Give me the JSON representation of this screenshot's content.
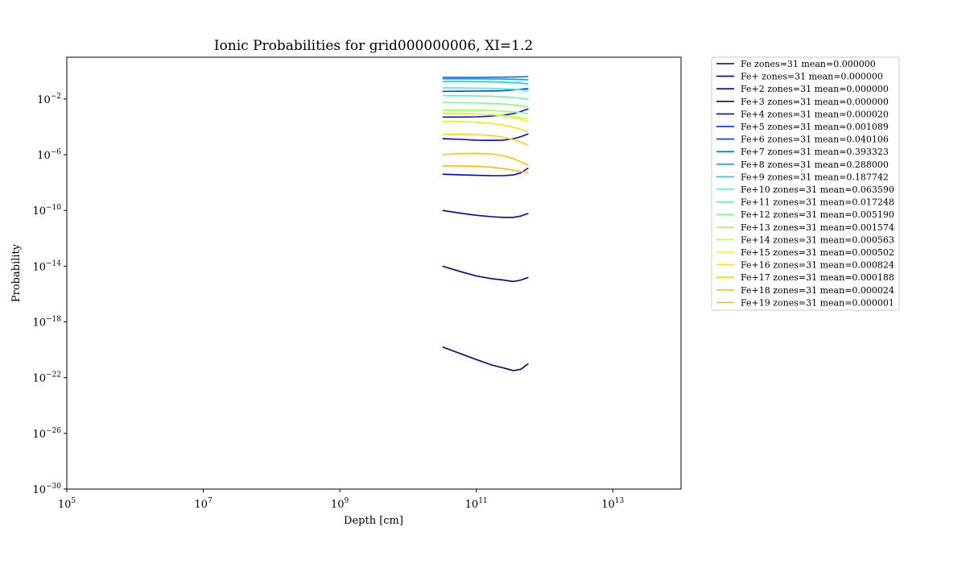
{
  "chart_data": {
    "type": "line",
    "title": "Ionic Probabilities for grid000000006, XI=1.2",
    "xlabel": "Depth [cm]",
    "ylabel": "Probability",
    "xscale": "log",
    "yscale": "log",
    "xlim": [
      100000.0,
      100000000000000.0
    ],
    "ylim": [
      1e-30,
      10.0
    ],
    "xticks": [
      {
        "value": 100000.0,
        "base": "10",
        "exp": "5"
      },
      {
        "value": 10000000.0,
        "base": "10",
        "exp": "7"
      },
      {
        "value": 1000000000.0,
        "base": "10",
        "exp": "9"
      },
      {
        "value": 100000000000.0,
        "base": "10",
        "exp": "11"
      },
      {
        "value": 10000000000000.0,
        "base": "10",
        "exp": "13"
      }
    ],
    "yticks": [
      {
        "value": 0.01,
        "base": "10",
        "exp": "−2"
      },
      {
        "value": 1e-06,
        "base": "10",
        "exp": "−6"
      },
      {
        "value": 1e-10,
        "base": "10",
        "exp": "−10"
      },
      {
        "value": 1e-14,
        "base": "10",
        "exp": "−14"
      },
      {
        "value": 1e-18,
        "base": "10",
        "exp": "−18"
      },
      {
        "value": 1e-22,
        "base": "10",
        "exp": "−22"
      },
      {
        "value": 1e-26,
        "base": "10",
        "exp": "−26"
      },
      {
        "value": 1e-30,
        "base": "10",
        "exp": "−30"
      }
    ],
    "grid": false,
    "legend_position": "outside-right",
    "x": [
      32000000000.0,
      60000000000.0,
      100000000000.0,
      170000000000.0,
      250000000000.0,
      350000000000.0,
      450000000000.0,
      580000000000.0
    ],
    "series": [
      {
        "name": "Fe zones=31 mean=0.000000",
        "color": "#000080",
        "logy": [
          -19.8,
          -20.3,
          -20.7,
          -21.1,
          -21.3,
          -21.5,
          -21.4,
          -21.0
        ]
      },
      {
        "name": "Fe+ zones=31 mean=0.000000",
        "color": "#00009b",
        "logy": [
          -14.0,
          -14.4,
          -14.7,
          -14.9,
          -15.0,
          -15.1,
          -15.0,
          -14.8
        ]
      },
      {
        "name": "Fe+2 zones=31 mean=0.000000",
        "color": "#0000b6",
        "logy": [
          -10.0,
          -10.2,
          -10.35,
          -10.45,
          -10.5,
          -10.5,
          -10.4,
          -10.2
        ]
      },
      {
        "name": "Fe+3 zones=31 mean=0.000000",
        "color": "#0000d1",
        "logy": [
          -7.4,
          -7.45,
          -7.48,
          -7.5,
          -7.5,
          -7.45,
          -7.3,
          -6.95
        ]
      },
      {
        "name": "Fe+4 zones=31 mean=0.000020",
        "color": "#0000ed",
        "logy": [
          -4.85,
          -4.9,
          -4.95,
          -4.97,
          -4.95,
          -4.85,
          -4.7,
          -4.5
        ]
      },
      {
        "name": "Fe+5 zones=31 mean=0.001089",
        "color": "#0010ff",
        "logy": [
          -3.3,
          -3.3,
          -3.28,
          -3.22,
          -3.15,
          -3.05,
          -2.9,
          -2.7
        ]
      },
      {
        "name": "Fe+6 zones=31 mean=0.040106",
        "color": "#0040ff",
        "logy": [
          -1.45,
          -1.44,
          -1.43,
          -1.42,
          -1.4,
          -1.35,
          -1.3,
          -1.25
        ]
      },
      {
        "name": "Fe+7 zones=31 mean=0.393323",
        "color": "#0070ff",
        "logy": [
          -0.45,
          -0.45,
          -0.45,
          -0.44,
          -0.43,
          -0.42,
          -0.41,
          -0.39
        ]
      },
      {
        "name": "Fe+8 zones=31 mean=0.288000",
        "color": "#00a0ff",
        "logy": [
          -0.55,
          -0.55,
          -0.55,
          -0.56,
          -0.57,
          -0.58,
          -0.6,
          -0.62
        ]
      },
      {
        "name": "Fe+9 zones=31 mean=0.187742",
        "color": "#00d4ff",
        "logy": [
          -0.75,
          -0.75,
          -0.76,
          -0.77,
          -0.79,
          -0.82,
          -0.86,
          -0.9
        ]
      },
      {
        "name": "Fe+10 zones=31 mean=0.063590",
        "color": "#29ffce",
        "logy": [
          -1.2,
          -1.21,
          -1.22,
          -1.24,
          -1.27,
          -1.3,
          -1.35,
          -1.4
        ]
      },
      {
        "name": "Fe+11 zones=31 mean=0.017248",
        "color": "#5aff9d",
        "logy": [
          -1.75,
          -1.76,
          -1.78,
          -1.8,
          -1.84,
          -1.89,
          -1.95,
          -2.0
        ]
      },
      {
        "name": "Fe+12 zones=31 mean=0.005190",
        "color": "#7dff7a",
        "logy": [
          -2.25,
          -2.26,
          -2.28,
          -2.32,
          -2.36,
          -2.41,
          -2.48,
          -2.56
        ]
      },
      {
        "name": "Fe+13 zones=31 mean=0.001574",
        "color": "#9dff5a",
        "logy": [
          -2.8,
          -2.8,
          -2.81,
          -2.83,
          -2.87,
          -2.92,
          -2.98,
          -3.05
        ]
      },
      {
        "name": "Fe+14 zones=31 mean=0.000563",
        "color": "#c1ff36",
        "logy": [
          -3.05,
          -3.06,
          -3.08,
          -3.12,
          -3.18,
          -3.26,
          -3.35,
          -3.45
        ]
      },
      {
        "name": "Fe+15 zones=31 mean=0.000502",
        "color": "#e4ff13",
        "logy": [
          -3.0,
          -3.02,
          -3.06,
          -3.13,
          -3.22,
          -3.33,
          -3.46,
          -3.62
        ]
      },
      {
        "name": "Fe+16 zones=31 mean=0.000824",
        "color": "#ffe600",
        "logy": [
          -3.6,
          -3.62,
          -3.67,
          -3.76,
          -3.88,
          -4.02,
          -4.18,
          -4.35
        ]
      },
      {
        "name": "Fe+17 zones=31 mean=0.000188",
        "color": "#ffd400",
        "logy": [
          -4.55,
          -4.53,
          -4.55,
          -4.62,
          -4.75,
          -4.92,
          -5.1,
          -5.3
        ]
      },
      {
        "name": "Fe+18 zones=31 mean=0.000024",
        "color": "#ffc700",
        "logy": [
          -6.0,
          -5.92,
          -5.9,
          -5.95,
          -6.08,
          -6.28,
          -6.5,
          -6.78
        ]
      },
      {
        "name": "Fe+19 zones=31 mean=0.000001",
        "color": "#ffb800",
        "logy": [
          -6.8,
          -6.8,
          -6.83,
          -6.9,
          -7.0,
          -7.1,
          -7.2,
          -7.3
        ]
      }
    ]
  }
}
